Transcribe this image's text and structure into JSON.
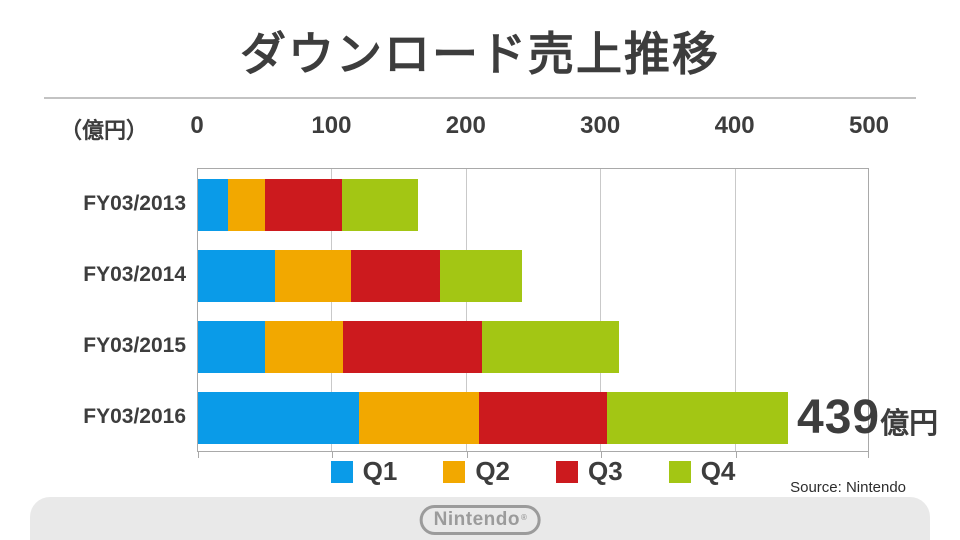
{
  "title": "ダウンロード売上推移",
  "axis": {
    "unit_label": "（億円）",
    "tick_values": [
      0,
      100,
      200,
      300,
      400,
      500
    ],
    "max": 500
  },
  "chart_data": {
    "type": "bar",
    "orientation": "horizontal",
    "stacked": true,
    "title": "ダウンロード売上推移",
    "unit": "億円",
    "xlim": [
      0,
      500
    ],
    "grid": true,
    "legend_position": "bottom",
    "categories": [
      "FY03/2013",
      "FY03/2014",
      "FY03/2015",
      "FY03/2016"
    ],
    "series": [
      {
        "name": "Q1",
        "color": "#0a9be8",
        "values": [
          22,
          57,
          50,
          120
        ]
      },
      {
        "name": "Q2",
        "color": "#f2a800",
        "values": [
          28,
          57,
          58,
          89
        ]
      },
      {
        "name": "Q3",
        "color": "#cc1a1e",
        "values": [
          57,
          66,
          103,
          95
        ]
      },
      {
        "name": "Q4",
        "color": "#a3c614",
        "values": [
          57,
          61,
          102,
          135
        ]
      }
    ],
    "totals": [
      164,
      241,
      313,
      439
    ],
    "annotation": {
      "category": "FY03/2016",
      "value": "439",
      "unit": "億円"
    }
  },
  "source": "Source: Nintendo",
  "footer": {
    "logo_text": "Nintendo",
    "registered_mark": "®"
  }
}
